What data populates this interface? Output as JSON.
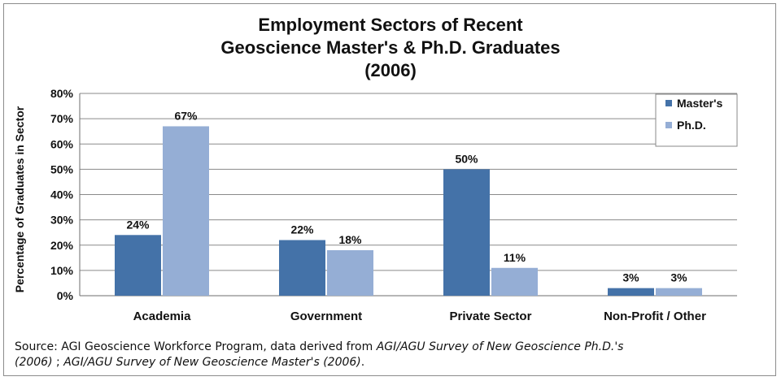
{
  "chart_data": {
    "type": "bar",
    "title_lines": [
      "Employment Sectors of Recent",
      "Geoscience Master's & Ph.D. Graduates",
      "(2006)"
    ],
    "ylabel": "Percentage  of Graduates  in Sector",
    "xlabel": "",
    "ylim": [
      0,
      80
    ],
    "yticks": [
      0,
      10,
      20,
      30,
      40,
      50,
      60,
      70,
      80
    ],
    "ytick_labels": [
      "0%",
      "10%",
      "20%",
      "30%",
      "40%",
      "50%",
      "60%",
      "70%",
      "80%"
    ],
    "grid": true,
    "legend_placement": "top-right",
    "categories": [
      "Academia",
      "Government",
      "Private Sector",
      "Non-Profit / Other"
    ],
    "series": [
      {
        "name": "Master's",
        "color": "#4472a8",
        "values": [
          24,
          22,
          50,
          3
        ],
        "labels": [
          "24%",
          "22%",
          "50%",
          "3%"
        ]
      },
      {
        "name": "Ph.D.",
        "color": "#95aed5",
        "values": [
          67,
          18,
          11,
          3
        ],
        "labels": [
          "67%",
          "18%",
          "11%",
          "3%"
        ]
      }
    ]
  },
  "source": {
    "prefix": "Source: AGI Geoscience Workforce Program, data derived from ",
    "survey1": "AGI/AGU Survey of New Geoscience Ph.D.'s (2006)",
    "sep": " ; ",
    "survey2": "AGI/AGU Survey of New Geoscience  Master's (2006)",
    "suffix": "."
  }
}
